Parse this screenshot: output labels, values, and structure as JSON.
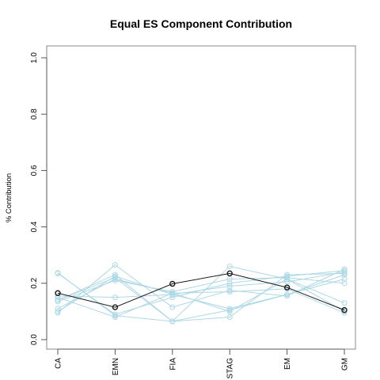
{
  "chart_data": {
    "type": "line",
    "title": "Equal ES Component Contribution",
    "xlabel": "",
    "ylabel": "% Contribution",
    "categories": [
      "CA",
      "EMN",
      "FIA",
      "STAG",
      "EM",
      "GM"
    ],
    "ylim": [
      0,
      1.0
    ],
    "yticks": [
      "0.0",
      "0.2",
      "0.4",
      "0.6",
      "0.8",
      "1.0"
    ],
    "grid": false,
    "legend": "none",
    "colors": {
      "background": "#add8e6",
      "highlight": "#1a1a1a"
    },
    "highlight_series": {
      "values": [
        0.165,
        0.115,
        0.198,
        0.235,
        0.185,
        0.105
      ]
    },
    "background_series": [
      {
        "values": [
          0.237,
          0.085,
          0.065,
          0.26,
          0.215,
          0.1
        ]
      },
      {
        "values": [
          0.235,
          0.09,
          0.15,
          0.2,
          0.225,
          0.245
        ]
      },
      {
        "values": [
          0.14,
          0.22,
          0.065,
          0.08,
          0.23,
          0.235
        ]
      },
      {
        "values": [
          0.1,
          0.225,
          0.16,
          0.11,
          0.16,
          0.23
        ]
      },
      {
        "values": [
          0.095,
          0.265,
          0.115,
          0.175,
          0.155,
          0.25
        ]
      },
      {
        "values": [
          0.135,
          0.21,
          0.17,
          0.215,
          0.22,
          0.2
        ]
      },
      {
        "values": [
          0.15,
          0.08,
          0.165,
          0.1,
          0.215,
          0.13
        ]
      },
      {
        "values": [
          0.155,
          0.15,
          0.16,
          0.19,
          0.205,
          0.24
        ]
      },
      {
        "values": [
          0.14,
          0.23,
          0.065,
          0.105,
          0.16,
          0.215
        ]
      },
      {
        "values": [
          0.11,
          0.215,
          0.165,
          0.17,
          0.18,
          0.095
        ]
      }
    ]
  }
}
